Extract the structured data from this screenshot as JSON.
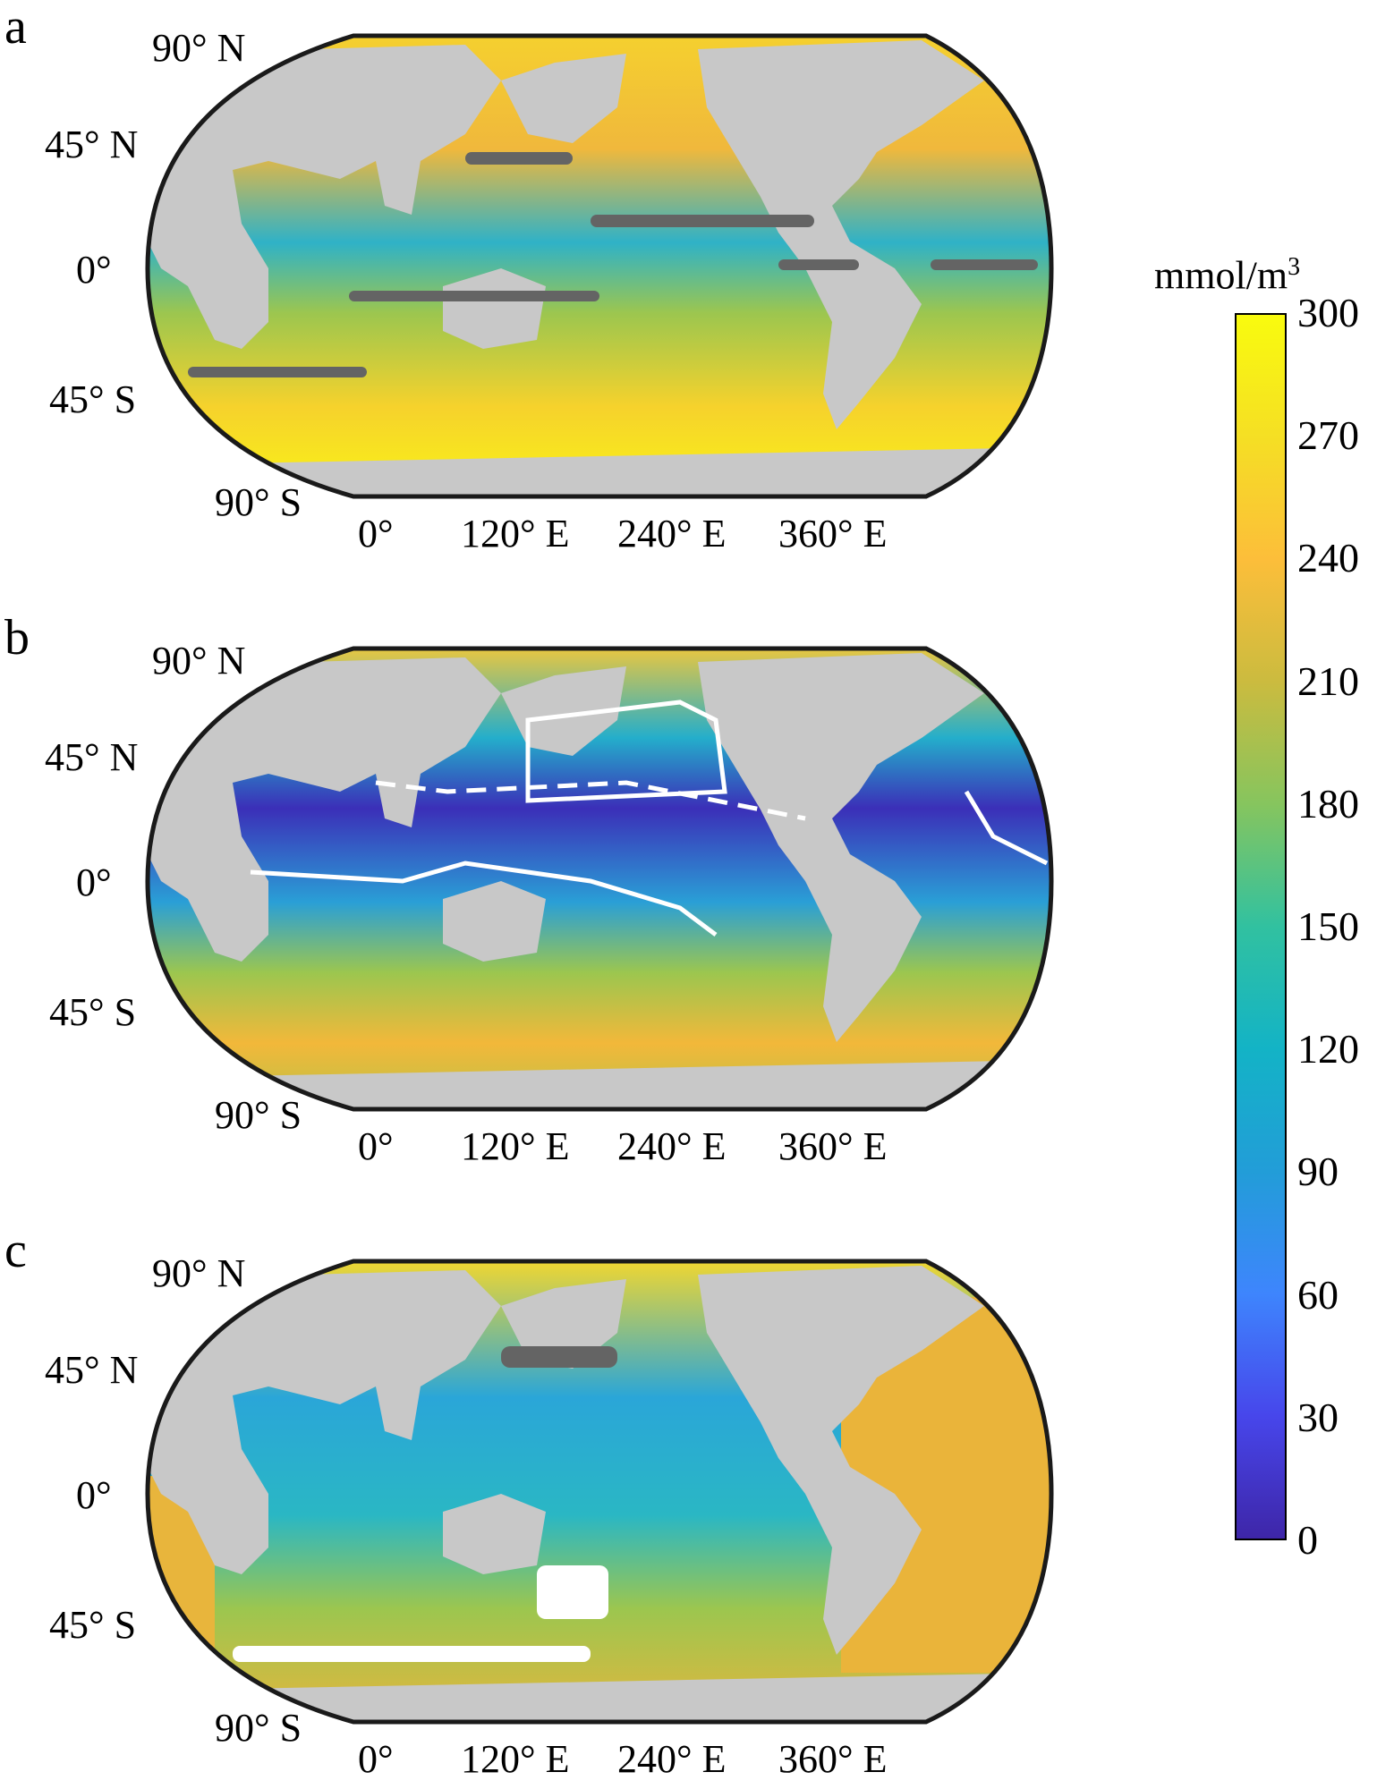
{
  "colorbar": {
    "unit_main": "mmol/m",
    "unit_exp": "3",
    "ticks": [
      "300",
      "270",
      "240",
      "210",
      "180",
      "150",
      "120",
      "90",
      "60",
      "30",
      "0"
    ],
    "range": [
      0,
      300
    ],
    "colors": [
      "#3e26a8",
      "#4746eb",
      "#3e85fd",
      "#229dd8",
      "#13b3c6",
      "#31c1a0",
      "#86c55e",
      "#cbbb3f",
      "#fcbe3a",
      "#f5df24",
      "#f9fb0e"
    ]
  },
  "labels": {
    "lat": [
      "90° N",
      "45° N",
      "0°",
      "45° S",
      "90° S"
    ],
    "lon": [
      "0°",
      "120° E",
      "240° E",
      "360° E"
    ]
  },
  "panels": [
    {
      "letter": "a",
      "color_top": "#f2c83a",
      "color_mid": "#3ab7c0",
      "color_bottom": "#f6d82c"
    },
    {
      "letter": "b",
      "color_top": "#f2c83a",
      "color_mid": "#3b2fb8",
      "color_bottom": "#f2b83a"
    },
    {
      "letter": "c",
      "color_top": "#f6d82c",
      "color_mid": "#2aa6d8",
      "color_bottom": "#e8b53c"
    }
  ],
  "legend": {
    "land": "#c8c8c8",
    "missing": "#646464"
  }
}
